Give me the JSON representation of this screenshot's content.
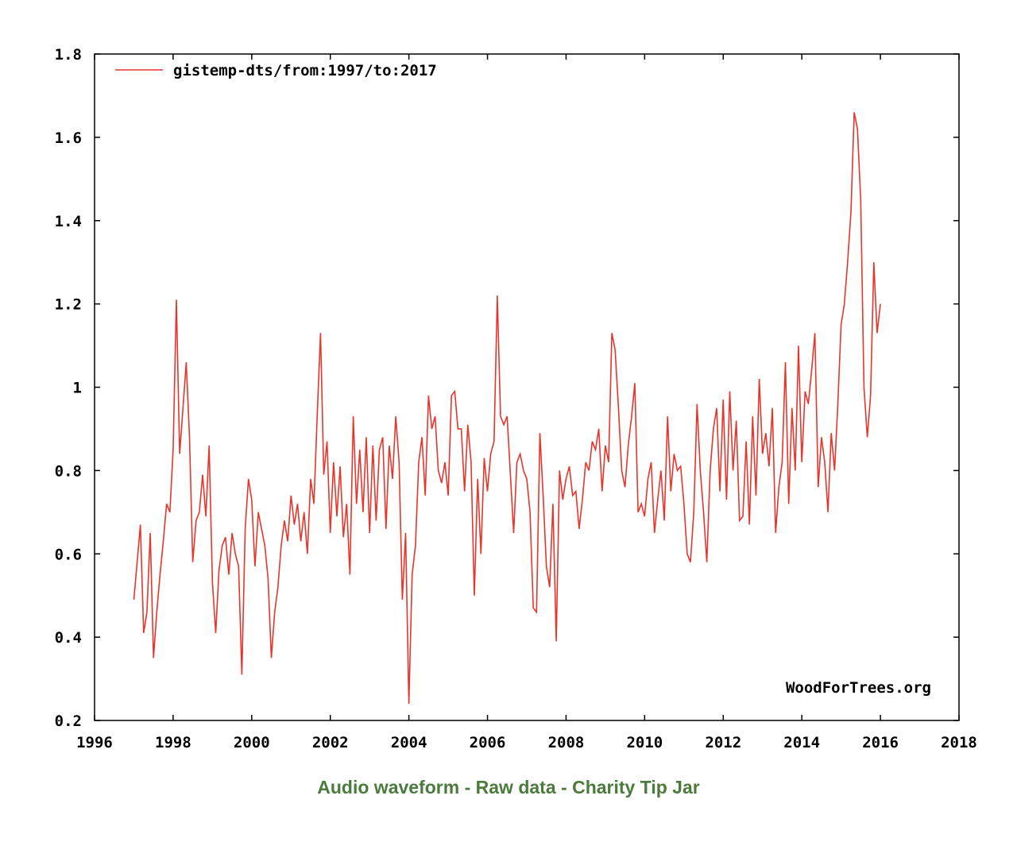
{
  "chart_data": {
    "type": "line",
    "title": "",
    "xlabel": "",
    "ylabel": "",
    "xlim": [
      1996,
      2018
    ],
    "ylim": [
      0.2,
      1.8
    ],
    "grid": false,
    "legend_position": "top-left",
    "x_ticks": [
      1996,
      1998,
      2000,
      2002,
      2004,
      2006,
      2008,
      2010,
      2012,
      2014,
      2016,
      2018
    ],
    "y_ticks": [
      0.2,
      0.4,
      0.6,
      0.8,
      1,
      1.2,
      1.4,
      1.6,
      1.8
    ],
    "x_tick_labels": [
      "1996",
      "1998",
      "2000",
      "2002",
      "2004",
      "2006",
      "2008",
      "2010",
      "2012",
      "2014",
      "2016",
      "2018"
    ],
    "y_tick_labels": [
      "0.2",
      "0.4",
      "0.6",
      "0.8",
      "1",
      "1.2",
      "1.4",
      "1.6",
      "1.8"
    ],
    "series": [
      {
        "name": "gistemp-dts/from:1997/to:2017",
        "color": "#e8352b",
        "x_start": 1997.0,
        "x_step": 0.08333,
        "values": [
          0.49,
          0.58,
          0.67,
          0.41,
          0.46,
          0.65,
          0.35,
          0.46,
          0.55,
          0.63,
          0.72,
          0.7,
          0.85,
          1.21,
          0.84,
          0.95,
          1.06,
          0.88,
          0.58,
          0.68,
          0.7,
          0.79,
          0.69,
          0.86,
          0.53,
          0.41,
          0.56,
          0.62,
          0.64,
          0.55,
          0.65,
          0.6,
          0.57,
          0.31,
          0.66,
          0.78,
          0.73,
          0.57,
          0.7,
          0.66,
          0.62,
          0.54,
          0.35,
          0.46,
          0.52,
          0.62,
          0.68,
          0.63,
          0.74,
          0.67,
          0.72,
          0.63,
          0.7,
          0.6,
          0.78,
          0.72,
          0.93,
          1.13,
          0.79,
          0.87,
          0.65,
          0.82,
          0.69,
          0.81,
          0.64,
          0.72,
          0.55,
          0.93,
          0.72,
          0.85,
          0.7,
          0.88,
          0.65,
          0.86,
          0.68,
          0.85,
          0.88,
          0.66,
          0.86,
          0.78,
          0.93,
          0.82,
          0.49,
          0.65,
          0.24,
          0.55,
          0.62,
          0.82,
          0.88,
          0.74,
          0.98,
          0.9,
          0.93,
          0.8,
          0.77,
          0.82,
          0.74,
          0.98,
          0.99,
          0.9,
          0.9,
          0.75,
          0.91,
          0.82,
          0.5,
          0.78,
          0.6,
          0.83,
          0.75,
          0.84,
          0.87,
          1.22,
          0.93,
          0.91,
          0.93,
          0.79,
          0.65,
          0.82,
          0.84,
          0.8,
          0.78,
          0.7,
          0.47,
          0.46,
          0.89,
          0.74,
          0.57,
          0.52,
          0.72,
          0.39,
          0.8,
          0.73,
          0.78,
          0.81,
          0.74,
          0.75,
          0.66,
          0.73,
          0.82,
          0.8,
          0.87,
          0.85,
          0.9,
          0.75,
          0.86,
          0.82,
          1.13,
          1.09,
          0.95,
          0.8,
          0.76,
          0.86,
          0.93,
          1.01,
          0.7,
          0.72,
          0.69,
          0.78,
          0.82,
          0.65,
          0.73,
          0.8,
          0.68,
          0.93,
          0.75,
          0.84,
          0.8,
          0.81,
          0.72,
          0.6,
          0.58,
          0.7,
          0.96,
          0.8,
          0.7,
          0.58,
          0.8,
          0.9,
          0.95,
          0.75,
          0.97,
          0.73,
          0.99,
          0.8,
          0.92,
          0.68,
          0.69,
          0.87,
          0.67,
          0.93,
          0.74,
          1.02,
          0.84,
          0.89,
          0.81,
          0.95,
          0.65,
          0.76,
          0.82,
          1.06,
          0.72,
          0.95,
          0.8,
          1.1,
          0.82,
          0.99,
          0.96,
          1.04,
          1.13,
          0.76,
          0.88,
          0.82,
          0.7,
          0.89,
          0.8,
          0.96,
          1.15,
          1.2,
          1.3,
          1.42,
          1.66,
          1.62,
          1.45,
          1.0,
          0.88,
          0.98,
          1.3,
          1.13,
          1.2
        ]
      }
    ]
  },
  "legend": {
    "label": "gistemp-dts/from:1997/to:2017"
  },
  "watermark": "WoodForTrees.org",
  "links": {
    "audio": "Audio waveform",
    "raw": "Raw data",
    "tip": "Charity Tip Jar",
    "sep": "-"
  }
}
